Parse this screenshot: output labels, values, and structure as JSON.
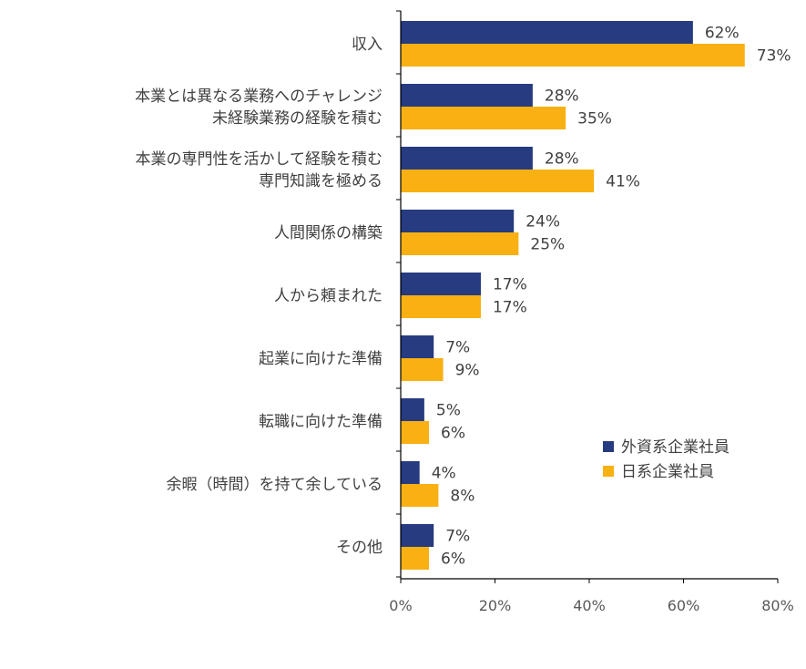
{
  "chart_data": {
    "type": "bar",
    "orientation": "horizontal",
    "categories": [
      [
        "収入"
      ],
      [
        "本業とは異なる業務へのチャレンジ",
        "未経験業務の経験を積む"
      ],
      [
        "本業の専門性を活かして経験を積む",
        "専門知識を極める"
      ],
      [
        "人間関係の構築"
      ],
      [
        "人から頼まれた"
      ],
      [
        "起業に向けた準備"
      ],
      [
        "転職に向けた準備"
      ],
      [
        "余暇（時間）を持て余している"
      ],
      [
        "その他"
      ]
    ],
    "series": [
      {
        "name": "外資系企業社員",
        "color": "#263b80",
        "values": [
          62,
          28,
          28,
          24,
          17,
          7,
          5,
          4,
          7
        ],
        "labels": [
          "62%",
          "28%",
          "28%",
          "24%",
          "17%",
          "7%",
          "5%",
          "4%",
          "7%"
        ]
      },
      {
        "name": "日系企業社員",
        "color": "#f8b013",
        "values": [
          73,
          35,
          41,
          25,
          17,
          9,
          6,
          8,
          6
        ],
        "labels": [
          "73%",
          "35%",
          "41%",
          "25%",
          "17%",
          "9%",
          "6%",
          "8%",
          "6%"
        ]
      }
    ],
    "xlim": [
      0,
      80
    ],
    "x_ticks": [
      0,
      20,
      40,
      60,
      80
    ],
    "x_tick_labels": [
      "0%",
      "20%",
      "40%",
      "60%",
      "80%"
    ],
    "grid": false,
    "legend_position": "bottom-right"
  }
}
